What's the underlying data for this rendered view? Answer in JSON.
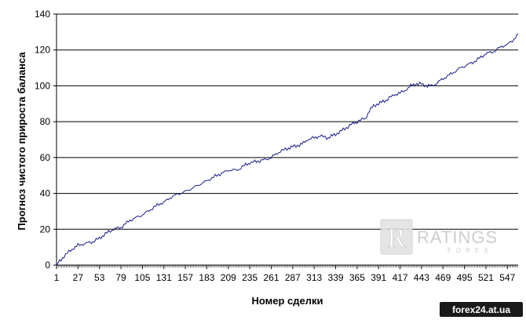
{
  "chart_data": {
    "type": "line",
    "ylabel": "Прогноз чистого прироста баланса",
    "xlabel": "Номер сделки",
    "ylim": [
      0,
      140
    ],
    "yticks": [
      0,
      20,
      40,
      60,
      80,
      100,
      120,
      140
    ],
    "xlim": [
      1,
      560
    ],
    "xticks": [
      1,
      27,
      53,
      79,
      105,
      131,
      157,
      183,
      209,
      235,
      261,
      287,
      313,
      339,
      365,
      391,
      417,
      443,
      469,
      495,
      521,
      547
    ],
    "grid": "horizontal",
    "line_color": "#1a1a8c",
    "series": [
      {
        "x": [
          1,
          10,
          20,
          27,
          35,
          45,
          53,
          62,
          70,
          79,
          90,
          100,
          105,
          115,
          125,
          131,
          140,
          150,
          157,
          170,
          183,
          195,
          205,
          209,
          220,
          230,
          235,
          245,
          255,
          261,
          270,
          280,
          287,
          295,
          300,
          305,
          313,
          320,
          330,
          339,
          350,
          360,
          365,
          375,
          380,
          385,
          391,
          400,
          410,
          417,
          425,
          430,
          435,
          443,
          450,
          455,
          460,
          469,
          480,
          490,
          495,
          505,
          515,
          521,
          530,
          540,
          547,
          555,
          560
        ],
        "y": [
          0,
          5,
          9,
          11,
          12,
          13,
          15,
          18,
          20,
          21,
          25,
          27,
          28,
          31,
          34,
          35,
          38,
          40,
          41,
          44,
          47,
          50,
          52,
          53,
          53,
          56,
          57,
          58,
          59,
          60,
          63,
          65,
          66,
          67,
          68,
          70,
          71,
          72,
          71,
          73,
          76,
          79,
          80,
          82,
          86,
          89,
          90,
          92,
          95,
          96,
          98,
          100,
          101,
          101,
          100,
          100,
          101,
          104,
          107,
          110,
          111,
          113,
          116,
          118,
          119,
          122,
          123,
          126,
          129
        ]
      }
    ]
  },
  "watermark": {
    "letter": "R",
    "brand": "RATINGS",
    "sub": "FOREX"
  },
  "badge": {
    "text": "forex24.at.ua"
  }
}
